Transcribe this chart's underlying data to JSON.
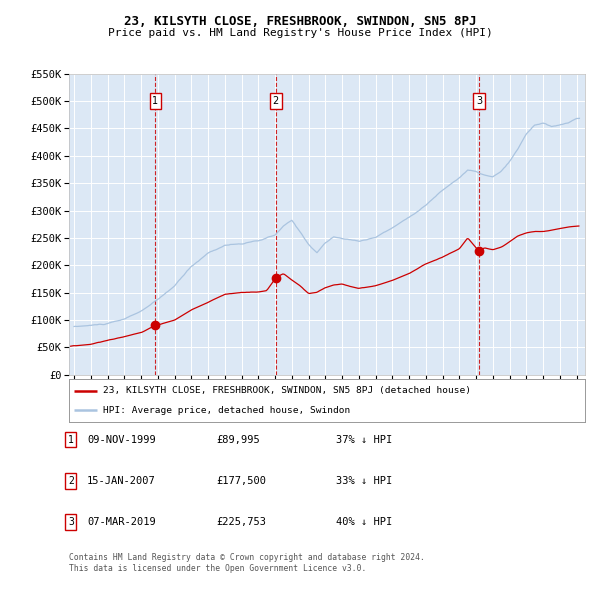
{
  "title": "23, KILSYTH CLOSE, FRESHBROOK, SWINDON, SN5 8PJ",
  "subtitle": "Price paid vs. HM Land Registry's House Price Index (HPI)",
  "legend_line1": "23, KILSYTH CLOSE, FRESHBROOK, SWINDON, SN5 8PJ (detached house)",
  "legend_line2": "HPI: Average price, detached house, Swindon",
  "footer1": "Contains HM Land Registry data © Crown copyright and database right 2024.",
  "footer2": "This data is licensed under the Open Government Licence v3.0.",
  "transactions": [
    {
      "num": 1,
      "date": "09-NOV-1999",
      "price": 89995,
      "pct": "37% ↓ HPI",
      "year": 1999.86
    },
    {
      "num": 2,
      "date": "15-JAN-2007",
      "price": 177500,
      "pct": "33% ↓ HPI",
      "year": 2007.04
    },
    {
      "num": 3,
      "date": "07-MAR-2019",
      "price": 225753,
      "pct": "40% ↓ HPI",
      "year": 2019.18
    }
  ],
  "hpi_color": "#aac4e0",
  "price_color": "#cc0000",
  "plot_bg": "#dce8f5",
  "grid_color": "#ffffff",
  "dashed_color": "#cc0000",
  "ylim": [
    0,
    550000
  ],
  "yticks": [
    0,
    50000,
    100000,
    150000,
    200000,
    250000,
    300000,
    350000,
    400000,
    450000,
    500000,
    550000
  ],
  "xlim": [
    1994.7,
    2025.5
  ],
  "xticks": [
    1995,
    1996,
    1997,
    1998,
    1999,
    2000,
    2001,
    2002,
    2003,
    2004,
    2005,
    2006,
    2007,
    2008,
    2009,
    2010,
    2011,
    2012,
    2013,
    2014,
    2015,
    2016,
    2017,
    2018,
    2019,
    2020,
    2021,
    2022,
    2023,
    2024,
    2025
  ]
}
